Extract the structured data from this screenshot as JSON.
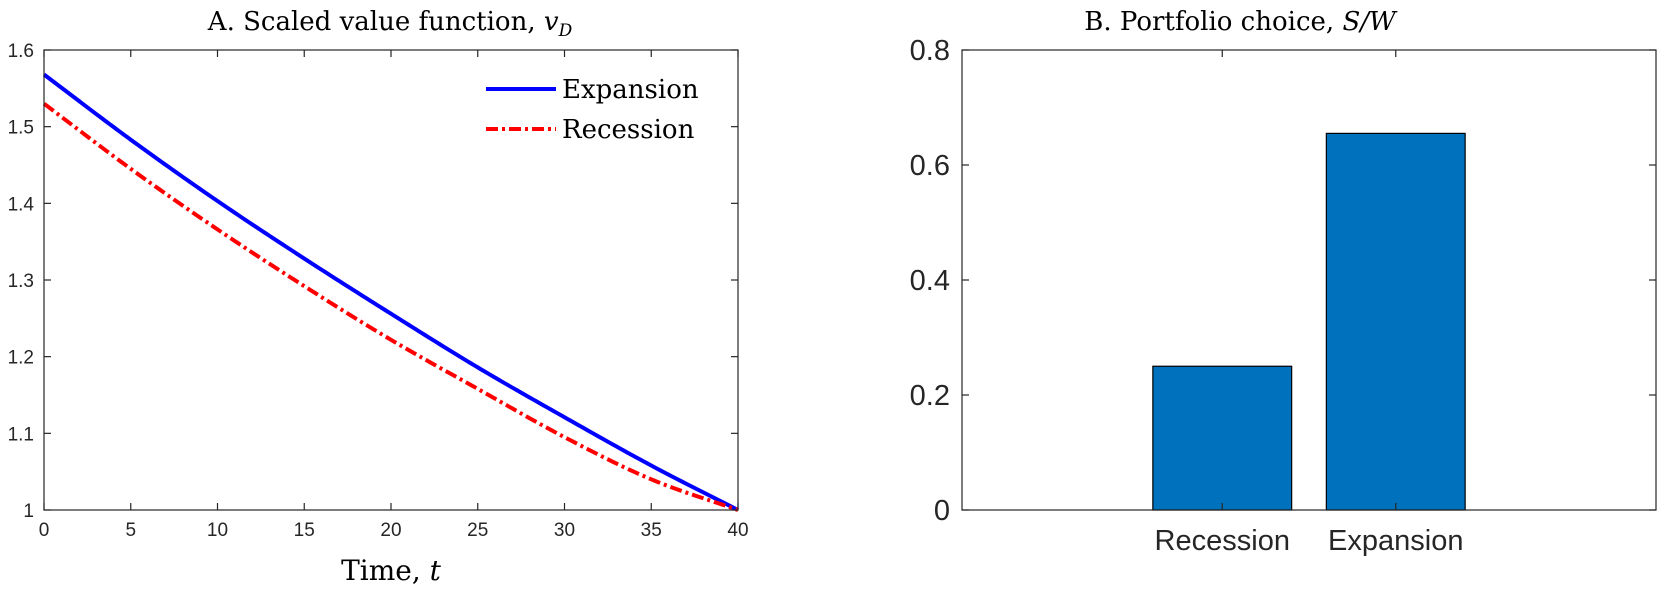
{
  "chart_data": [
    {
      "type": "line",
      "title": "A. Scaled value function, ",
      "title_math": "v",
      "title_math_sub": "D",
      "xlabel": "Time, ",
      "xlabel_math": "t",
      "ylabel": "",
      "xlim": [
        0,
        40
      ],
      "ylim": [
        1,
        1.6
      ],
      "xticks": [
        "0",
        "5",
        "10",
        "15",
        "20",
        "25",
        "30",
        "35",
        "40"
      ],
      "yticks": [
        "1",
        "1.1",
        "1.2",
        "1.3",
        "1.4",
        "1.5",
        "1.6"
      ],
      "grid": false,
      "legend_position": "top-right",
      "x": [
        0,
        5,
        10,
        15,
        20,
        25,
        30,
        35,
        40
      ],
      "series": [
        {
          "name": "Expansion",
          "color": "#0000ff",
          "style": "solid",
          "values": [
            1.568,
            1.483,
            1.403,
            1.328,
            1.256,
            1.186,
            1.121,
            1.058,
            1.0
          ]
        },
        {
          "name": "Recession",
          "color": "#ff0000",
          "style": "dash-dot",
          "values": [
            1.53,
            1.445,
            1.366,
            1.292,
            1.222,
            1.158,
            1.095,
            1.04,
            1.0
          ]
        }
      ]
    },
    {
      "type": "bar",
      "title": "B. Portfolio choice, ",
      "title_math": "S/W",
      "categories": [
        "Recession",
        "Expansion"
      ],
      "values": [
        0.25,
        0.655
      ],
      "ylim": [
        0,
        0.8
      ],
      "yticks": [
        "0",
        "0.2",
        "0.4",
        "0.6",
        "0.8"
      ],
      "grid": false,
      "bar_color": "#0072bd"
    }
  ]
}
